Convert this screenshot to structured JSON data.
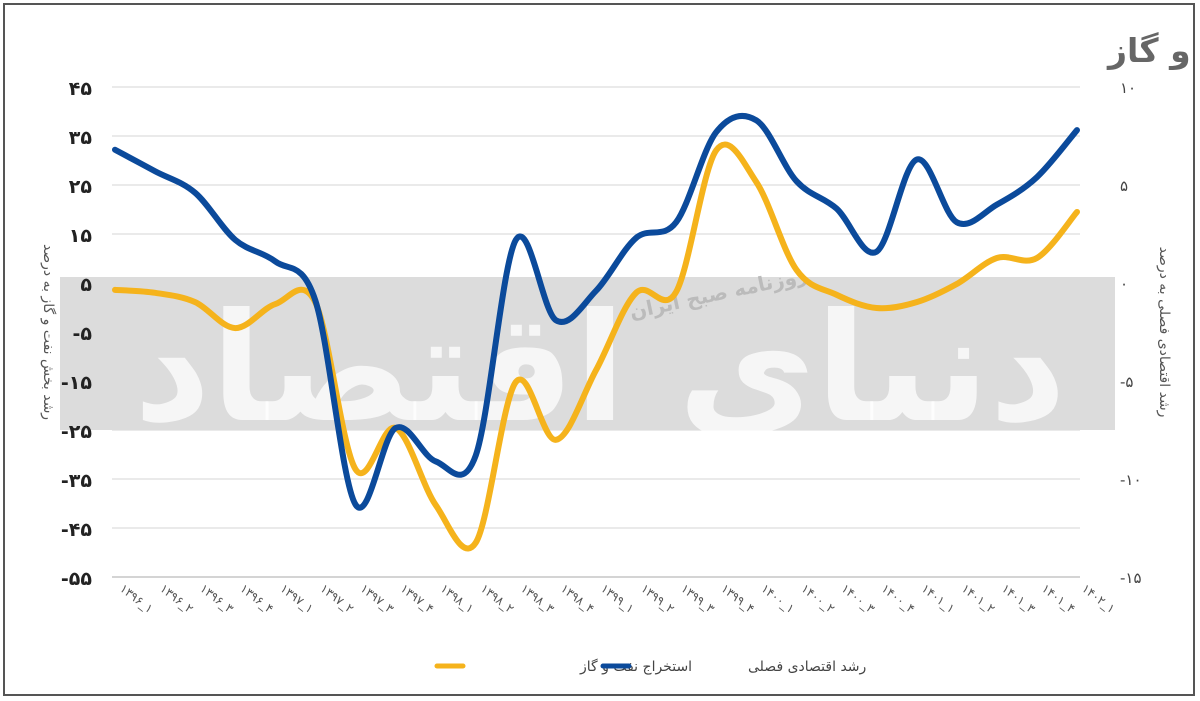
{
  "chart_data": {
    "type": "line",
    "title": "روند رشد فصلی اقتصاد و رشد استخراج نفت و گاز",
    "watermark": [
      "دنیای اقتصاد",
      "روزنامه صبح ایران"
    ],
    "ylabel_left": "رشد بخش نفت و گاز به درصد",
    "ylabel_right": "رشد اقتصادی فصلی به درصد",
    "ylim_left": [
      -55,
      45
    ],
    "ylim_right": [
      -15,
      10
    ],
    "yticks_left": [
      "۴۵",
      "۳۵",
      "۲۵",
      "۱۵",
      "۵",
      "-۵",
      "-۱۵",
      "-۲۵",
      "-۳۵",
      "-۴۵",
      "-۵۵"
    ],
    "yticks_left_values": [
      45,
      35,
      25,
      15,
      5,
      -5,
      -15,
      -25,
      -35,
      -45,
      -55
    ],
    "yticks_right": [
      "۱۰",
      "۵",
      "۰",
      "-۵",
      "-۱۰",
      "-۱۵"
    ],
    "yticks_right_values": [
      10,
      5,
      0,
      -5,
      -10,
      -15
    ],
    "grid": true,
    "legend_position": "bottom",
    "categories": [
      "۱۳۹۶_۱",
      "۱۳۹۶_۲",
      "۱۳۹۶_۳",
      "۱۳۹۶_۴",
      "۱۳۹۷_۱",
      "۱۳۹۷_۲",
      "۱۳۹۷_۳",
      "۱۳۹۷_۴",
      "۱۳۹۸_۱",
      "۱۳۹۸_۲",
      "۱۳۹۸_۳",
      "۱۳۹۸_۴",
      "۱۳۹۹_۱",
      "۱۳۹۹_۲",
      "۱۳۹۹_۳",
      "۱۳۹۹_۴",
      "۱۴۰۰_۱",
      "۱۴۰۰_۲",
      "۱۴۰۰_۳",
      "۱۴۰۰_۴",
      "۱۴۰۱_۱",
      "۱۴۰۱_۲",
      "۱۴۰۱_۳",
      "۱۴۰۱_۴",
      "۱۴۰۲_۱"
    ],
    "series": [
      {
        "name": "استخراج نفت و گاز",
        "axis": "left",
        "color": "#f5b31c",
        "values": [
          3.6,
          3.0,
          1.1,
          -4.2,
          0.7,
          1.0,
          -33,
          -24.6,
          -40.3,
          -48,
          -15.2,
          -27,
          -12.8,
          3.0,
          3.2,
          32.1,
          25.6,
          7.7,
          2.6,
          -0.1,
          1.1,
          4.8,
          10.1,
          10.1,
          19.5
        ]
      },
      {
        "name": "رشد اقتصادی فصلی",
        "axis": "right",
        "color": "#0b4a9b",
        "values": [
          6.8,
          5.7,
          4.6,
          2.2,
          1.1,
          -0.9,
          -11.3,
          -7.4,
          -9.1,
          -8.8,
          2.2,
          -1.9,
          -0.4,
          2.3,
          3.1,
          7.7,
          8.3,
          5.2,
          3.8,
          1.6,
          6.3,
          3.1,
          4.0,
          5.4,
          7.8
        ]
      }
    ]
  }
}
